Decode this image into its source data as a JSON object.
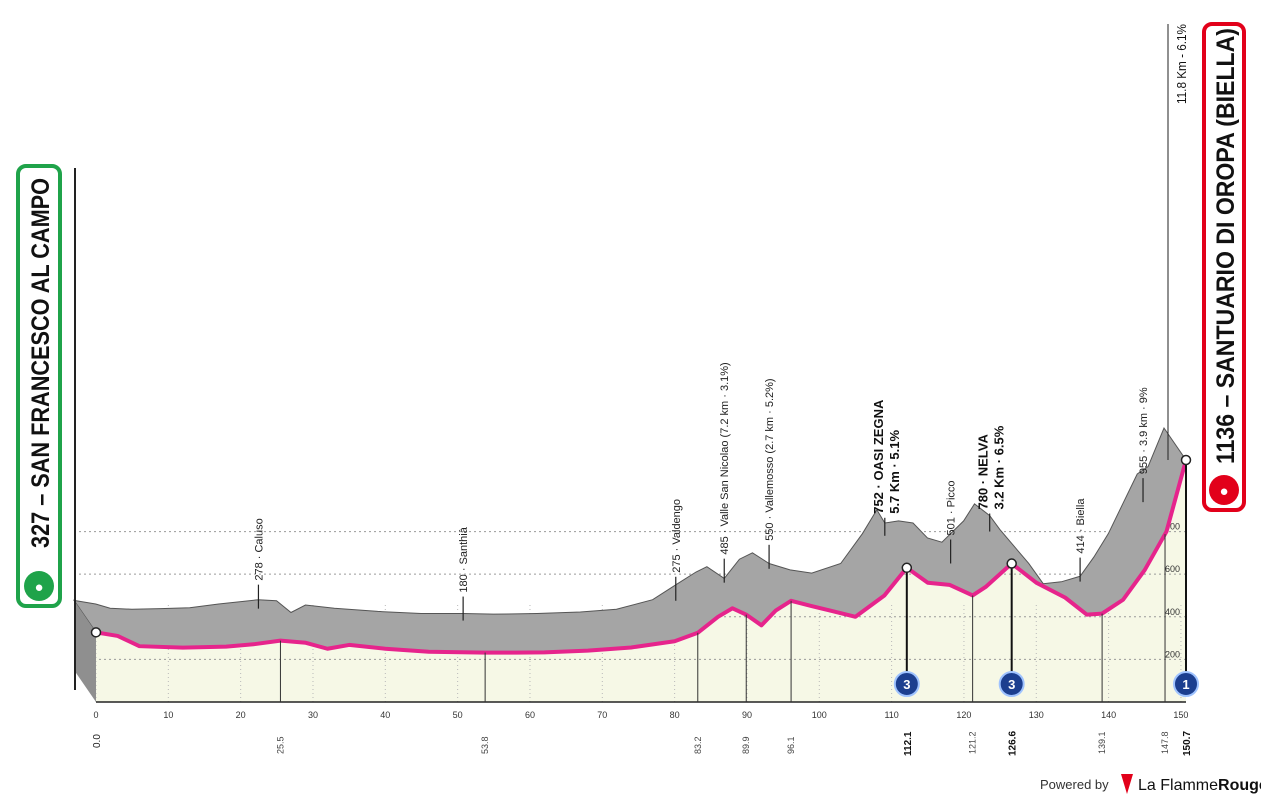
{
  "start": {
    "label": "327 – SAN FRANCESCO AL CAMPO",
    "color": "#1fa34a"
  },
  "finish": {
    "label": "1136 – SANTUARIO DI OROPA (BIELLA)",
    "color": "#e2001a",
    "climb_note": "11.8 Km - 6.1%"
  },
  "footer": {
    "powered_by": "Powered by",
    "brand_a": "La Flamme",
    "brand_b": "Rouge"
  },
  "chart_data": {
    "type": "area",
    "title": "",
    "xlabel": "",
    "ylabel": "",
    "xlim": [
      0,
      150.7
    ],
    "ylim": [
      0,
      1200
    ],
    "x_ticks": [
      0,
      10,
      20,
      30,
      40,
      50,
      60,
      70,
      80,
      90,
      100,
      110,
      120,
      130,
      140,
      150
    ],
    "x_tick_labels": [
      "0",
      "10",
      "20",
      "30",
      "40",
      "50",
      "60",
      "70",
      "80",
      "90",
      "100",
      "110",
      "120",
      "130",
      "140",
      "150"
    ],
    "y_ticks": [
      200,
      400,
      600,
      800
    ],
    "y_tick_labels": [
      "200",
      "400",
      "600",
      "800"
    ],
    "colors": {
      "profile_fill": "#a5a5a5",
      "base_fill": "#f6f8e6",
      "route_line": "#e6248c",
      "axis": "#222222"
    },
    "profile": [
      [
        0,
        327
      ],
      [
        3,
        310
      ],
      [
        5,
        290
      ],
      [
        8,
        285
      ],
      [
        12,
        288
      ],
      [
        16,
        292
      ],
      [
        20,
        310
      ],
      [
        25.5,
        330
      ],
      [
        28,
        325
      ],
      [
        30,
        270
      ],
      [
        32,
        305
      ],
      [
        36,
        290
      ],
      [
        42,
        275
      ],
      [
        48,
        265
      ],
      [
        53.8,
        265
      ],
      [
        58,
        262
      ],
      [
        64,
        265
      ],
      [
        70,
        272
      ],
      [
        75,
        285
      ],
      [
        80,
        330
      ],
      [
        83.2,
        400
      ],
      [
        86,
        460
      ],
      [
        87.5,
        485
      ],
      [
        89.9,
        430
      ],
      [
        92,
        520
      ],
      [
        93.8,
        550
      ],
      [
        96.1,
        500
      ],
      [
        99,
        470
      ],
      [
        102,
        455
      ],
      [
        106,
        500
      ],
      [
        109,
        640
      ],
      [
        111,
        752
      ],
      [
        112.1,
        690
      ],
      [
        114,
        700
      ],
      [
        116,
        690
      ],
      [
        118,
        620
      ],
      [
        120,
        600
      ],
      [
        121.2,
        640
      ],
      [
        123,
        700
      ],
      [
        124.5,
        780
      ],
      [
        126.6,
        725
      ],
      [
        128,
        660
      ],
      [
        130,
        580
      ],
      [
        132,
        500
      ],
      [
        134,
        405
      ],
      [
        136.5,
        414
      ],
      [
        139.1,
        440
      ],
      [
        141,
        530
      ],
      [
        143,
        640
      ],
      [
        145,
        780
      ],
      [
        147,
        920
      ],
      [
        148.5,
        955
      ],
      [
        150.7,
        1136
      ]
    ],
    "route": [
      [
        0,
        327
      ],
      [
        3,
        310
      ],
      [
        6,
        262
      ],
      [
        12,
        255
      ],
      [
        18,
        260
      ],
      [
        22,
        272
      ],
      [
        25.5,
        288
      ],
      [
        29,
        278
      ],
      [
        32,
        250
      ],
      [
        35,
        268
      ],
      [
        40,
        250
      ],
      [
        46,
        236
      ],
      [
        53.8,
        232
      ],
      [
        58,
        232
      ],
      [
        62,
        233
      ],
      [
        68,
        241
      ],
      [
        74,
        256
      ],
      [
        80,
        285
      ],
      [
        83.2,
        325
      ],
      [
        86,
        400
      ],
      [
        88,
        440
      ],
      [
        89.9,
        410
      ],
      [
        92,
        360
      ],
      [
        94,
        430
      ],
      [
        96.1,
        475
      ],
      [
        99,
        450
      ],
      [
        102,
        425
      ],
      [
        105,
        400
      ],
      [
        109,
        500
      ],
      [
        112.1,
        630
      ],
      [
        115,
        560
      ],
      [
        118,
        550
      ],
      [
        121.2,
        500
      ],
      [
        123,
        540
      ],
      [
        126.6,
        650
      ],
      [
        130,
        560
      ],
      [
        134,
        490
      ],
      [
        137,
        410
      ],
      [
        139.1,
        415
      ],
      [
        142,
        480
      ],
      [
        145,
        620
      ],
      [
        148,
        800
      ],
      [
        150.7,
        1136
      ]
    ],
    "towns": [
      {
        "km": 25.5,
        "label": "278 · Caluso",
        "km_label": "25.5"
      },
      {
        "km": 53.8,
        "label": "180 · Santhià",
        "km_label": "53.8"
      },
      {
        "km": 83.2,
        "label": "275 · Valdengo",
        "km_label": "83.2"
      },
      {
        "km": 89.9,
        "label": "485 · Valle San Nicolao (7.2 km · 3.1%)",
        "km_label": "89.9"
      },
      {
        "km": 96.1,
        "label": "550 · Vallemosso (2.7 km · 5.2%)",
        "km_label": "96.1"
      },
      {
        "km": 121.2,
        "label": "501 · Picco",
        "km_label": "121.2"
      },
      {
        "km": 139.1,
        "label": "414 · Biella",
        "km_label": "139.1"
      },
      {
        "km": 147.8,
        "label": "955 · 3.9 km · 9%",
        "km_label": "147.8"
      }
    ],
    "climbs": [
      {
        "km": 112.1,
        "line1": "752 · OASI ZEGNA",
        "line2": "5.7 Km · 5.1%",
        "category": "3",
        "km_label": "112.1"
      },
      {
        "km": 126.6,
        "line1": "780 · NELVA",
        "line2": "3.2 Km · 6.5%",
        "category": "3",
        "km_label": "126.6"
      },
      {
        "km": 150.7,
        "line1": "",
        "line2": "",
        "category": "1",
        "km_label": "150.7"
      }
    ],
    "start_km_label": "0.0"
  }
}
